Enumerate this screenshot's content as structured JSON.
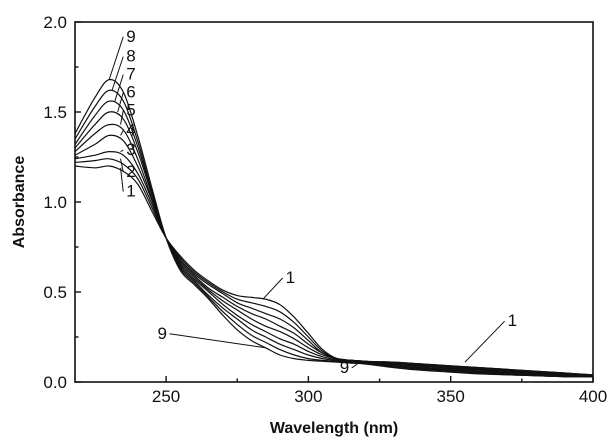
{
  "chart_data": {
    "type": "line",
    "xlabel": "Wavelength (nm)",
    "ylabel": "Absorbance",
    "xlim": [
      218,
      400
    ],
    "ylim": [
      0,
      2.0
    ],
    "x_ticks": [
      250,
      300,
      350,
      400
    ],
    "y_ticks": [
      0.0,
      0.5,
      1.0,
      1.5,
      2.0
    ],
    "x_tick_labels": [
      "250",
      "300",
      "350",
      "400"
    ],
    "y_tick_labels": [
      "0.0",
      "0.5",
      "1.0",
      "1.5",
      "2.0"
    ],
    "grid": false,
    "x": [
      218,
      225,
      230,
      235,
      240,
      245,
      250,
      255,
      260,
      265,
      270,
      275,
      280,
      285,
      290,
      295,
      300,
      305,
      310,
      315,
      320,
      330,
      340,
      350,
      360,
      370,
      380,
      390,
      400
    ],
    "series": [
      {
        "name": "1",
        "values": [
          1.2,
          1.19,
          1.2,
          1.17,
          1.1,
          0.95,
          0.8,
          0.7,
          0.62,
          0.56,
          0.51,
          0.48,
          0.47,
          0.46,
          0.43,
          0.36,
          0.27,
          0.18,
          0.13,
          0.12,
          0.115,
          0.11,
          0.1,
          0.09,
          0.08,
          0.07,
          0.06,
          0.05,
          0.04
        ]
      },
      {
        "name": "2",
        "values": [
          1.22,
          1.23,
          1.24,
          1.21,
          1.13,
          0.97,
          0.8,
          0.69,
          0.61,
          0.55,
          0.5,
          0.46,
          0.44,
          0.42,
          0.39,
          0.33,
          0.25,
          0.17,
          0.13,
          0.12,
          0.115,
          0.11,
          0.1,
          0.09,
          0.08,
          0.07,
          0.06,
          0.05,
          0.04
        ]
      },
      {
        "name": "3",
        "values": [
          1.24,
          1.26,
          1.28,
          1.26,
          1.16,
          0.99,
          0.8,
          0.68,
          0.6,
          0.54,
          0.49,
          0.44,
          0.41,
          0.38,
          0.35,
          0.3,
          0.23,
          0.16,
          0.13,
          0.12,
          0.115,
          0.105,
          0.095,
          0.085,
          0.075,
          0.065,
          0.055,
          0.045,
          0.035
        ]
      },
      {
        "name": "4",
        "values": [
          1.26,
          1.32,
          1.37,
          1.34,
          1.2,
          1.01,
          0.8,
          0.67,
          0.59,
          0.52,
          0.47,
          0.42,
          0.38,
          0.35,
          0.31,
          0.27,
          0.21,
          0.16,
          0.13,
          0.12,
          0.115,
          0.1,
          0.09,
          0.08,
          0.07,
          0.06,
          0.05,
          0.04,
          0.03
        ]
      },
      {
        "name": "5",
        "values": [
          1.28,
          1.38,
          1.43,
          1.4,
          1.24,
          1.02,
          0.8,
          0.66,
          0.58,
          0.51,
          0.45,
          0.4,
          0.35,
          0.31,
          0.28,
          0.24,
          0.19,
          0.15,
          0.13,
          0.12,
          0.115,
          0.1,
          0.085,
          0.075,
          0.065,
          0.055,
          0.045,
          0.035,
          0.03
        ]
      },
      {
        "name": "6",
        "values": [
          1.3,
          1.43,
          1.5,
          1.46,
          1.28,
          1.04,
          0.8,
          0.65,
          0.57,
          0.5,
          0.43,
          0.37,
          0.32,
          0.28,
          0.24,
          0.21,
          0.17,
          0.14,
          0.125,
          0.115,
          0.11,
          0.095,
          0.08,
          0.07,
          0.06,
          0.05,
          0.04,
          0.035,
          0.03
        ]
      },
      {
        "name": "7",
        "values": [
          1.32,
          1.48,
          1.56,
          1.51,
          1.31,
          1.05,
          0.8,
          0.64,
          0.56,
          0.48,
          0.41,
          0.35,
          0.29,
          0.25,
          0.21,
          0.18,
          0.15,
          0.13,
          0.12,
          0.115,
          0.11,
          0.09,
          0.075,
          0.065,
          0.055,
          0.045,
          0.035,
          0.03,
          0.03
        ]
      },
      {
        "name": "8",
        "values": [
          1.35,
          1.53,
          1.62,
          1.56,
          1.34,
          1.06,
          0.8,
          0.63,
          0.55,
          0.47,
          0.39,
          0.32,
          0.26,
          0.22,
          0.18,
          0.15,
          0.13,
          0.12,
          0.115,
          0.11,
          0.105,
          0.085,
          0.07,
          0.06,
          0.05,
          0.04,
          0.035,
          0.03,
          0.03
        ]
      },
      {
        "name": "9",
        "values": [
          1.38,
          1.58,
          1.68,
          1.61,
          1.37,
          1.08,
          0.8,
          0.62,
          0.54,
          0.46,
          0.37,
          0.29,
          0.23,
          0.19,
          0.15,
          0.13,
          0.12,
          0.115,
          0.11,
          0.105,
          0.1,
          0.08,
          0.065,
          0.055,
          0.045,
          0.04,
          0.035,
          0.03,
          0.03
        ]
      }
    ],
    "annotations": [
      {
        "text": "9",
        "x": 236,
        "y": 1.89,
        "points_to": {
          "x": 230,
          "y": 1.68
        }
      },
      {
        "text": "8",
        "x": 236,
        "y": 1.78,
        "points_to": {
          "x": 231,
          "y": 1.62
        }
      },
      {
        "text": "7",
        "x": 236,
        "y": 1.68,
        "points_to": {
          "x": 232,
          "y": 1.56
        }
      },
      {
        "text": "6",
        "x": 236,
        "y": 1.58,
        "points_to": {
          "x": 233,
          "y": 1.5
        }
      },
      {
        "text": "5",
        "x": 236,
        "y": 1.48,
        "points_to": {
          "x": 234,
          "y": 1.43
        }
      },
      {
        "text": "4",
        "x": 236,
        "y": 1.37,
        "points_to": {
          "x": 234,
          "y": 1.37
        }
      },
      {
        "text": "3",
        "x": 236,
        "y": 1.26,
        "points_to": {
          "x": 234,
          "y": 1.28
        }
      },
      {
        "text": "2",
        "x": 236,
        "y": 1.14,
        "points_to": {
          "x": 234,
          "y": 1.24
        }
      },
      {
        "text": "1",
        "x": 236,
        "y": 1.03,
        "points_to": {
          "x": 234,
          "y": 1.19
        }
      },
      {
        "text": "1",
        "x": 292,
        "y": 0.55,
        "points_to": {
          "x": 284,
          "y": 0.46
        }
      },
      {
        "text": "9",
        "x": 247,
        "y": 0.24,
        "points_to": {
          "x": 285,
          "y": 0.19
        }
      },
      {
        "text": "9",
        "x": 311,
        "y": 0.05,
        "points_to": {
          "x": 318,
          "y": 0.11
        }
      },
      {
        "text": "1",
        "x": 370,
        "y": 0.31,
        "points_to": {
          "x": 355,
          "y": 0.11
        }
      }
    ]
  }
}
